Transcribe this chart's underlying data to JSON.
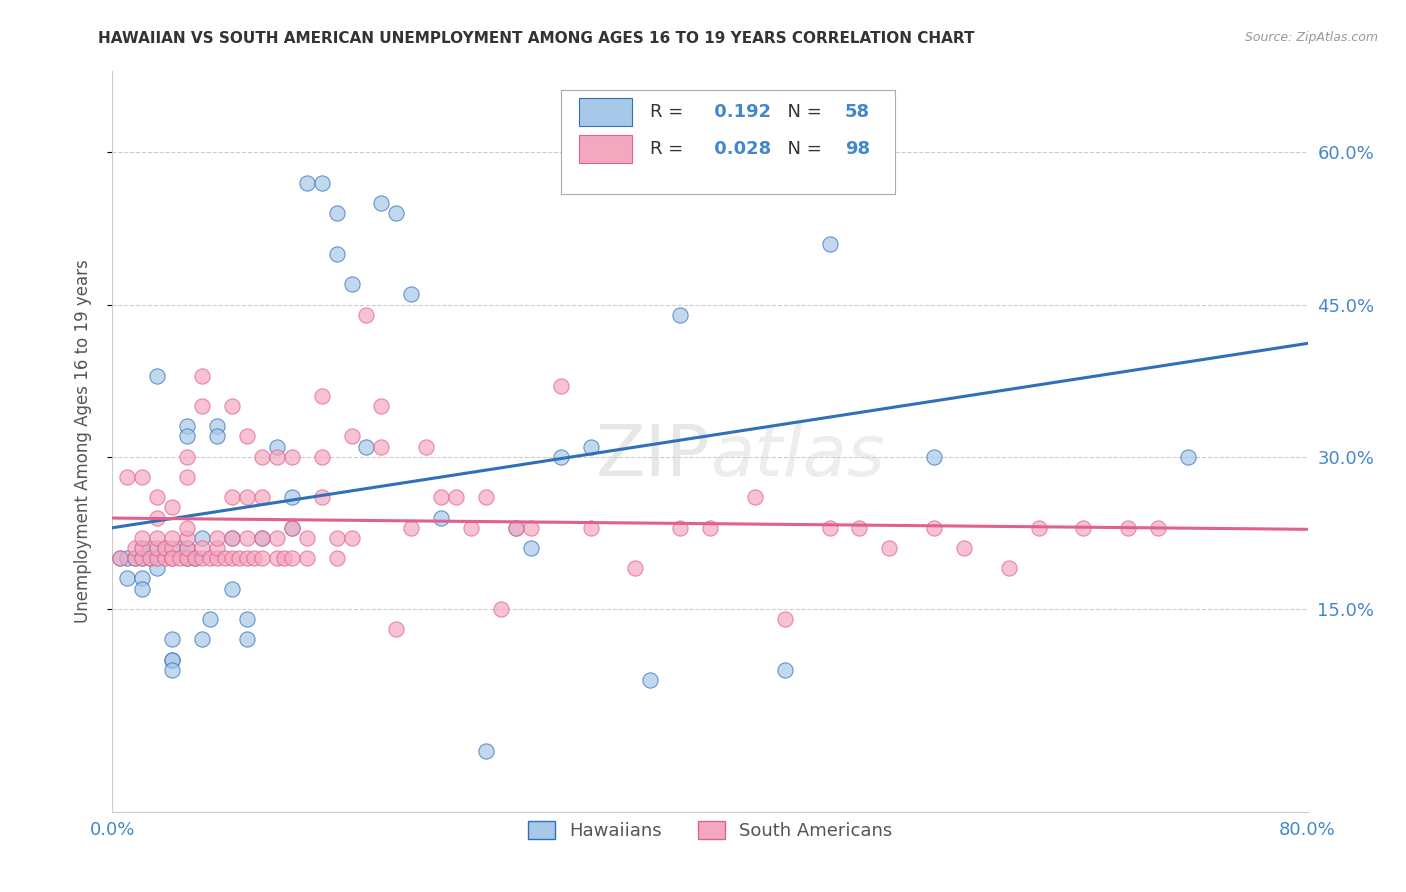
{
  "title": "HAWAIIAN VS SOUTH AMERICAN UNEMPLOYMENT AMONG AGES 16 TO 19 YEARS CORRELATION CHART",
  "source": "Source: ZipAtlas.com",
  "ylabel": "Unemployment Among Ages 16 to 19 years",
  "xlim": [
    0.0,
    0.8
  ],
  "ylim": [
    -0.05,
    0.68
  ],
  "y_ticks": [
    0.15,
    0.3,
    0.45,
    0.6
  ],
  "y_tick_labels": [
    "15.0%",
    "30.0%",
    "45.0%",
    "60.0%"
  ],
  "x_ticks": [
    0.0,
    0.1,
    0.2,
    0.3,
    0.4,
    0.5,
    0.6,
    0.7,
    0.8
  ],
  "x_tick_labels": [
    "0.0%",
    "",
    "",
    "",
    "",
    "",
    "",
    "",
    "80.0%"
  ],
  "hawaiian_R": 0.192,
  "hawaiian_N": 58,
  "south_american_R": 0.028,
  "south_american_N": 98,
  "hawaiian_color": "#a8c8e8",
  "south_american_color": "#f4a8c0",
  "trend_hawaiian_color": "#3070b8",
  "trend_south_american_color": "#e06090",
  "tick_color": "#4488cc",
  "background_color": "#ffffff",
  "grid_color": "#cccccc",
  "watermark_color": "#d8d8d8",
  "hawaiian_x": [
    0.005,
    0.01,
    0.01,
    0.015,
    0.02,
    0.02,
    0.02,
    0.02,
    0.025,
    0.025,
    0.03,
    0.03,
    0.03,
    0.035,
    0.04,
    0.04,
    0.04,
    0.04,
    0.045,
    0.05,
    0.05,
    0.05,
    0.05,
    0.055,
    0.06,
    0.06,
    0.065,
    0.07,
    0.07,
    0.08,
    0.08,
    0.09,
    0.09,
    0.1,
    0.11,
    0.12,
    0.12,
    0.13,
    0.14,
    0.15,
    0.15,
    0.16,
    0.17,
    0.18,
    0.19,
    0.2,
    0.22,
    0.25,
    0.27,
    0.28,
    0.3,
    0.32,
    0.36,
    0.38,
    0.45,
    0.48,
    0.55,
    0.72
  ],
  "hawaiian_y": [
    0.2,
    0.18,
    0.2,
    0.2,
    0.2,
    0.21,
    0.18,
    0.17,
    0.2,
    0.21,
    0.38,
    0.2,
    0.19,
    0.21,
    0.1,
    0.12,
    0.1,
    0.09,
    0.21,
    0.2,
    0.21,
    0.33,
    0.32,
    0.2,
    0.22,
    0.12,
    0.14,
    0.33,
    0.32,
    0.17,
    0.22,
    0.14,
    0.12,
    0.22,
    0.31,
    0.26,
    0.23,
    0.57,
    0.57,
    0.54,
    0.5,
    0.47,
    0.31,
    0.55,
    0.54,
    0.46,
    0.24,
    0.01,
    0.23,
    0.21,
    0.3,
    0.31,
    0.08,
    0.44,
    0.09,
    0.51,
    0.3,
    0.3
  ],
  "south_american_x": [
    0.005,
    0.01,
    0.015,
    0.015,
    0.02,
    0.02,
    0.02,
    0.02,
    0.025,
    0.03,
    0.03,
    0.03,
    0.03,
    0.03,
    0.035,
    0.035,
    0.04,
    0.04,
    0.04,
    0.04,
    0.04,
    0.045,
    0.05,
    0.05,
    0.05,
    0.05,
    0.05,
    0.05,
    0.055,
    0.06,
    0.06,
    0.06,
    0.06,
    0.065,
    0.07,
    0.07,
    0.07,
    0.075,
    0.08,
    0.08,
    0.08,
    0.08,
    0.085,
    0.09,
    0.09,
    0.09,
    0.09,
    0.095,
    0.1,
    0.1,
    0.1,
    0.1,
    0.11,
    0.11,
    0.11,
    0.115,
    0.12,
    0.12,
    0.12,
    0.13,
    0.13,
    0.14,
    0.14,
    0.14,
    0.15,
    0.15,
    0.16,
    0.16,
    0.17,
    0.18,
    0.18,
    0.19,
    0.2,
    0.21,
    0.22,
    0.23,
    0.24,
    0.25,
    0.26,
    0.27,
    0.28,
    0.3,
    0.32,
    0.35,
    0.38,
    0.4,
    0.43,
    0.45,
    0.48,
    0.5,
    0.52,
    0.55,
    0.57,
    0.6,
    0.62,
    0.65,
    0.68,
    0.7
  ],
  "south_american_y": [
    0.2,
    0.28,
    0.2,
    0.21,
    0.2,
    0.21,
    0.22,
    0.28,
    0.2,
    0.2,
    0.21,
    0.22,
    0.24,
    0.26,
    0.2,
    0.21,
    0.2,
    0.21,
    0.25,
    0.2,
    0.22,
    0.2,
    0.2,
    0.21,
    0.22,
    0.23,
    0.28,
    0.3,
    0.2,
    0.2,
    0.21,
    0.35,
    0.38,
    0.2,
    0.2,
    0.21,
    0.22,
    0.2,
    0.2,
    0.22,
    0.26,
    0.35,
    0.2,
    0.2,
    0.22,
    0.26,
    0.32,
    0.2,
    0.2,
    0.22,
    0.26,
    0.3,
    0.2,
    0.22,
    0.3,
    0.2,
    0.2,
    0.23,
    0.3,
    0.2,
    0.22,
    0.26,
    0.3,
    0.36,
    0.2,
    0.22,
    0.22,
    0.32,
    0.44,
    0.31,
    0.35,
    0.13,
    0.23,
    0.31,
    0.26,
    0.26,
    0.23,
    0.26,
    0.15,
    0.23,
    0.23,
    0.37,
    0.23,
    0.19,
    0.23,
    0.23,
    0.26,
    0.14,
    0.23,
    0.23,
    0.21,
    0.23,
    0.21,
    0.19,
    0.23,
    0.23,
    0.23,
    0.23
  ]
}
